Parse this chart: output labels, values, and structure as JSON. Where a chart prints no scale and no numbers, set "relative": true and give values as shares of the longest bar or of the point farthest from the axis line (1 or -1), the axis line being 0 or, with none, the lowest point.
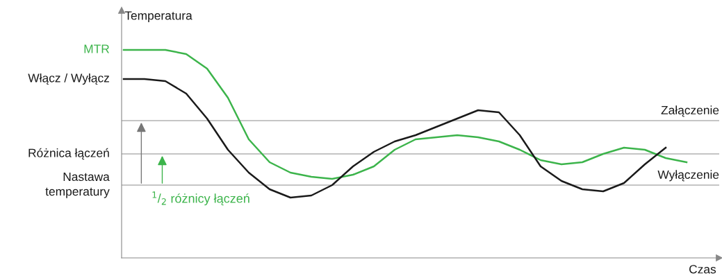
{
  "chart_data": {
    "type": "line",
    "relative": true,
    "ylabel": "Temperatura",
    "xlabel": "Czas",
    "legend": false,
    "grid": false,
    "marker": "none",
    "line_style": "solid",
    "categories": [
      null,
      null,
      null,
      null,
      null,
      null,
      null,
      null,
      null,
      null,
      null,
      null,
      null,
      null,
      null,
      null,
      null,
      null,
      null,
      null,
      null,
      null,
      null,
      null,
      null,
      null,
      null,
      null
    ],
    "series": [
      {
        "name": "MTR",
        "color": "#3cb44b",
        "values": [
          1,
          1,
          1,
          0.98,
          0.91,
          0.77,
          0.57,
          0.46,
          0.41,
          0.39,
          0.38,
          0.4,
          0.44,
          0.52,
          0.57,
          0.58,
          0.59,
          0.58,
          0.56,
          0.52,
          0.47,
          0.45,
          0.46,
          0.5,
          0.53,
          0.52,
          0.48,
          0.46
        ]
      },
      {
        "name": "Włącz / Wyłącz",
        "color": "#1a1a1a",
        "values": [
          0.86,
          0.86,
          0.85,
          0.79,
          0.67,
          0.52,
          0.41,
          0.33,
          0.29,
          0.3,
          0.35,
          0.44,
          0.51,
          0.56,
          0.59,
          0.63,
          0.67,
          0.71,
          0.7,
          0.59,
          0.44,
          0.37,
          0.33,
          0.32,
          0.36,
          0.45,
          0.53,
          null
        ]
      }
    ],
    "ref_lines": [
      {
        "axis": "y",
        "value": 0.66,
        "label": null,
        "color": "#8c8c8c"
      },
      {
        "axis": "y",
        "value": 0.5,
        "label": "Różnica łączeń",
        "color": "#8c8c8c"
      },
      {
        "axis": "y",
        "value": 0.35,
        "label": "Nastawa\ntemperatury",
        "color": "#8c8c8c"
      }
    ],
    "annotations": [
      {
        "text": "Załączenie",
        "y": 0.66
      },
      {
        "text": "Wyłączenie",
        "y": 0.35
      },
      "$^{1}$/$_{2}$ różnicy łączeń"
    ]
  }
}
